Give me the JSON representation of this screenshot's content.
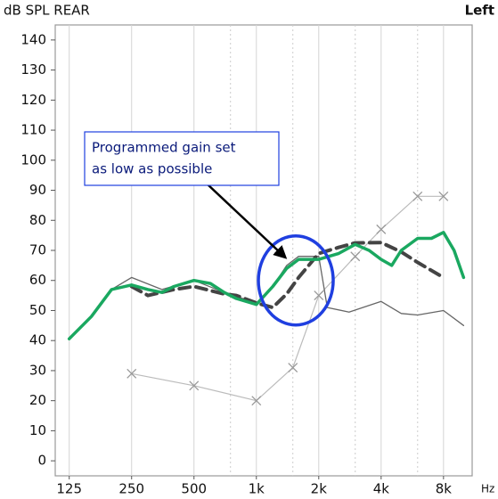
{
  "chart_data": {
    "type": "line",
    "title": "dB SPL REAR",
    "ear": "Left",
    "x_label": "Hz",
    "xscale": "log",
    "grid": true,
    "xlim": [
      107,
      11000
    ],
    "xticks": [
      125,
      250,
      500,
      {
        "value": 1000,
        "label": "1k"
      },
      {
        "value": 2000,
        "label": "2k"
      },
      {
        "value": 4000,
        "label": "4k"
      },
      {
        "value": 8000,
        "label": "8k"
      }
    ],
    "minor_xticks": [
      750,
      1500,
      3000,
      6000
    ],
    "ylim": [
      -5,
      145
    ],
    "yticks": [
      0,
      10,
      20,
      30,
      40,
      50,
      60,
      70,
      80,
      90,
      100,
      110,
      120,
      130,
      140
    ],
    "annotation": {
      "lines": [
        "Programmed gain set",
        "as low as possible"
      ],
      "x": 1550,
      "y": 60
    },
    "series": [
      {
        "color": "#bbbbbb",
        "markers": true,
        "width": 1.2,
        "x": [
          250,
          500,
          1000,
          1500,
          2000,
          3000,
          4000,
          6000,
          8000
        ],
        "values": [
          29,
          25,
          20,
          31,
          55,
          68,
          77,
          88,
          88
        ]
      },
      {
        "color": "#666666",
        "width": 1.3,
        "x": [
          125,
          160,
          200,
          250,
          350,
          500,
          700,
          1000,
          1200,
          1400,
          1600,
          2000,
          2200,
          2800,
          4000,
          5000,
          6000,
          8000,
          10000
        ],
        "values": [
          40.6,
          48,
          57,
          61,
          57,
          60,
          56,
          52.5,
          58,
          65,
          68,
          68,
          51,
          49.5,
          53,
          49,
          48.5,
          50,
          45
        ]
      },
      {
        "color": "#444444",
        "dashed": true,
        "width": 4,
        "x": [
          250,
          300,
          400,
          500,
          700,
          800,
          1000,
          1200,
          1400,
          1600,
          2000,
          2500,
          3000,
          4000,
          5000,
          6000,
          8000
        ],
        "values": [
          58,
          55,
          57,
          58,
          55.5,
          55,
          52.5,
          51,
          55.5,
          61,
          69,
          71,
          72.5,
          72.6,
          69.5,
          66,
          61
        ]
      },
      {
        "color": "#1aa860",
        "width": 3.5,
        "x": [
          125,
          160,
          200,
          250,
          300,
          350,
          400,
          500,
          600,
          700,
          800,
          1000,
          1200,
          1400,
          1600,
          2000,
          2500,
          3000,
          3500,
          4000,
          4500,
          5000,
          6000,
          7000,
          8000,
          9000,
          10000
        ],
        "values": [
          40.6,
          48,
          57,
          58.5,
          57,
          56,
          58,
          60,
          59,
          56,
          54,
          52,
          58,
          64,
          67,
          67,
          69,
          72,
          70,
          67,
          65,
          70,
          74,
          74,
          76,
          70,
          61
        ]
      }
    ]
  }
}
